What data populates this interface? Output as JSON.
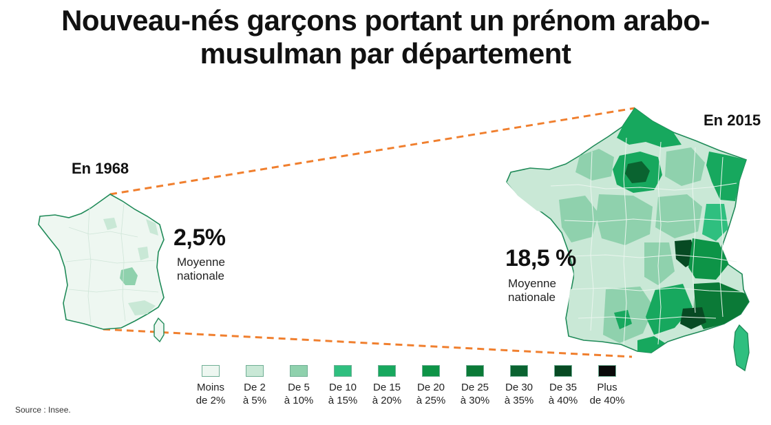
{
  "title": {
    "line1": "Nouveau-nés garçons portant un prénom arabo-",
    "line2": "musulman par département"
  },
  "map_1968": {
    "year_label": "En 1968",
    "value": "2,5%",
    "caption_line1": "Moyenne",
    "caption_line2": "nationale"
  },
  "map_2015": {
    "year_label": "En 2015",
    "value": "18,5 %",
    "caption_line1": "Moyenne",
    "caption_line2": "nationale"
  },
  "legend": [
    {
      "line1": "Moins",
      "line2": "de 2%",
      "color": "#eef7f1"
    },
    {
      "line1": "De 2",
      "line2": "à 5%",
      "color": "#c9e8d6"
    },
    {
      "line1": "De 5",
      "line2": "à 10%",
      "color": "#8fd1ad"
    },
    {
      "line1": "De 10",
      "line2": "à 15%",
      "color": "#2fbf7f"
    },
    {
      "line1": "De 15",
      "line2": "à 20%",
      "color": "#17a85e"
    },
    {
      "line1": "De 20",
      "line2": "à 25%",
      "color": "#0d9447"
    },
    {
      "line1": "De 25",
      "line2": "à 30%",
      "color": "#0b7a37"
    },
    {
      "line1": "De 30",
      "line2": "à 35%",
      "color": "#0a6330"
    },
    {
      "line1": "De 35",
      "line2": "à 40%",
      "color": "#074a23"
    },
    {
      "line1": "Plus",
      "line2": "de 40%",
      "color": "#0a0a0a"
    }
  ],
  "source": "Source : Insee.",
  "colors": {
    "border": "#1f8a58",
    "connector": "#f07f2e",
    "lightest": "#eef7f1"
  }
}
